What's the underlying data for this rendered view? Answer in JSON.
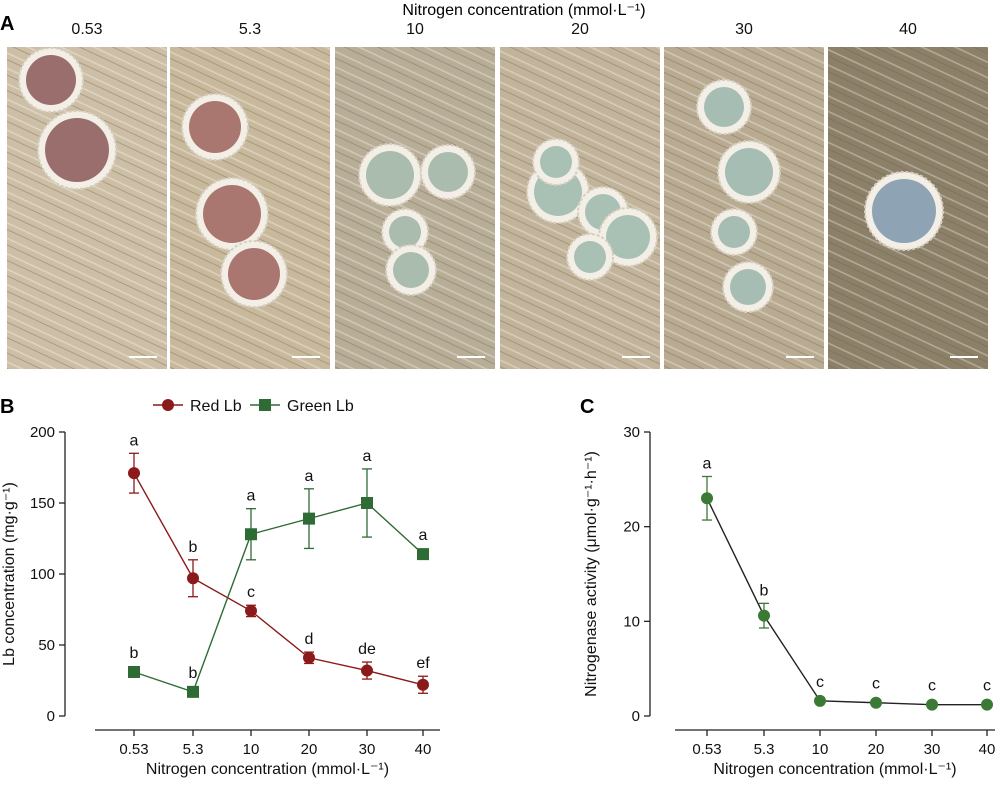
{
  "panel_a": {
    "label": "A",
    "title": "Nitrogen concentration (mmol·L⁻¹)",
    "photos": [
      {
        "label": "0.53",
        "nodule_color": "#9b6e6e"
      },
      {
        "label": "5.3",
        "nodule_color": "#a9776f"
      },
      {
        "label": "10",
        "nodule_color": "#a9bcae"
      },
      {
        "label": "20",
        "nodule_color": "#a9c0b4"
      },
      {
        "label": "30",
        "nodule_color": "#a6bdb4"
      },
      {
        "label": "40",
        "nodule_color": "#8ea3b3"
      }
    ]
  },
  "panel_b": {
    "label": "B"
  },
  "panel_c": {
    "label": "C"
  },
  "colors": {
    "red_lb": "#8b1a1a",
    "green_lb": "#2e6b35",
    "nitrogenase": "#3a7a35",
    "line": "#222222"
  },
  "chart_data": [
    {
      "type": "line",
      "categories": [
        "0.53",
        "5.3",
        "10",
        "20",
        "30",
        "40"
      ],
      "xlabel": "Nitrogen concentration (mmol·L⁻¹)",
      "ylabel": "Lb concentration (mg·g⁻¹)",
      "ylim": [
        0,
        200
      ],
      "yticks": [
        "0",
        "50",
        "100",
        "150",
        "200"
      ],
      "legend_position": "top",
      "series": [
        {
          "name": "Red Lb",
          "marker": "circle",
          "values": [
            171,
            97,
            74,
            41,
            32,
            22
          ],
          "errors": [
            14,
            13,
            4,
            4,
            6,
            6
          ],
          "letters": [
            "a",
            "b",
            "c",
            "d",
            "de",
            "ef"
          ]
        },
        {
          "name": "Green Lb",
          "marker": "square",
          "values": [
            31,
            17,
            128,
            139,
            150,
            114
          ],
          "errors": [
            0,
            0,
            18,
            21,
            24,
            0
          ],
          "letters": [
            "b",
            "b",
            "a",
            "a",
            "a",
            "a"
          ]
        }
      ]
    },
    {
      "type": "line",
      "categories": [
        "0.53",
        "5.3",
        "10",
        "20",
        "30",
        "40"
      ],
      "xlabel": "Nitrogen concentration (mmol·L⁻¹)",
      "ylabel": "Nitrogenase activity (μmol·g⁻¹·h⁻¹)",
      "ylim": [
        0,
        30
      ],
      "yticks": [
        "0",
        "10",
        "20",
        "30"
      ],
      "series": [
        {
          "name": "",
          "marker": "circle",
          "values": [
            23,
            10.6,
            1.6,
            1.4,
            1.2,
            1.2
          ],
          "errors": [
            2.3,
            1.3,
            0,
            0,
            0,
            0
          ],
          "letters": [
            "a",
            "b",
            "c",
            "c",
            "c",
            "c"
          ]
        }
      ]
    }
  ]
}
